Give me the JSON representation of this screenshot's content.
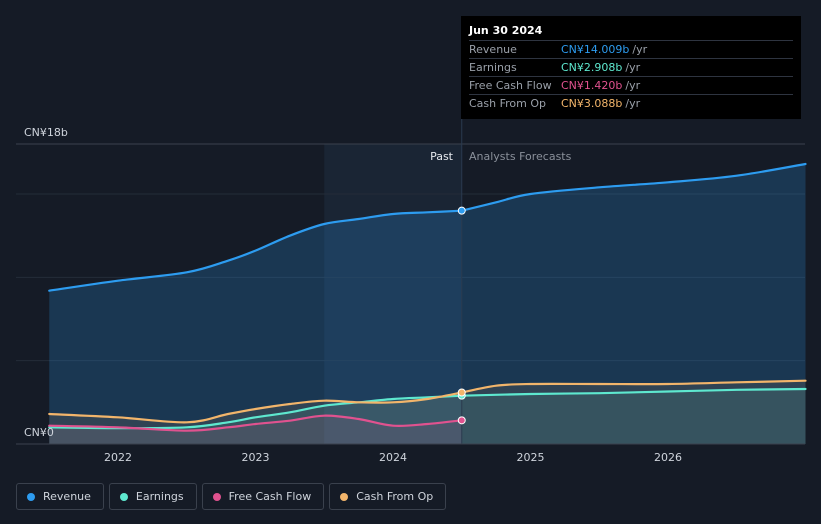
{
  "tooltip": {
    "date": "Jun 30 2024",
    "rows": [
      {
        "label": "Revenue",
        "value": "CN¥14.009b",
        "unit": "/yr",
        "color": "#2d9cf0"
      },
      {
        "label": "Earnings",
        "value": "CN¥2.908b",
        "unit": "/yr",
        "color": "#5ee8cf"
      },
      {
        "label": "Free Cash Flow",
        "value": "CN¥1.420b",
        "unit": "/yr",
        "color": "#e0528f"
      },
      {
        "label": "Cash From Op",
        "value": "CN¥3.088b",
        "unit": "/yr",
        "color": "#f2b56b"
      }
    ]
  },
  "legend": [
    {
      "label": "Revenue",
      "color": "#2d9cf0"
    },
    {
      "label": "Earnings",
      "color": "#5ee8cf"
    },
    {
      "label": "Free Cash Flow",
      "color": "#e0528f"
    },
    {
      "label": "Cash From Op",
      "color": "#f2b56b"
    }
  ],
  "chart_data": {
    "type": "line",
    "y_top_label": "CN¥18b",
    "y_bottom_label": "CN¥0",
    "ylim": [
      0,
      18
    ],
    "xlim": [
      2021.5,
      2027.0
    ],
    "x_ticks": [
      {
        "value": 2022.0,
        "label": "2022"
      },
      {
        "value": 2023.0,
        "label": "2023"
      },
      {
        "value": 2024.0,
        "label": "2024"
      },
      {
        "value": 2025.0,
        "label": "2025"
      },
      {
        "value": 2026.0,
        "label": "2026"
      }
    ],
    "past_label": "Past",
    "forecast_label": "Analysts Forecasts",
    "past_start": 2023.5,
    "divider": 2024.5,
    "series": [
      {
        "name": "Revenue",
        "color": "#2d9cf0",
        "past": [
          [
            2021.5,
            9.2
          ],
          [
            2022.0,
            9.8
          ],
          [
            2022.5,
            10.3
          ],
          [
            2022.8,
            11.0
          ],
          [
            2023.0,
            11.6
          ],
          [
            2023.25,
            12.5
          ],
          [
            2023.5,
            13.2
          ],
          [
            2023.75,
            13.5
          ],
          [
            2024.0,
            13.8
          ],
          [
            2024.25,
            13.9
          ],
          [
            2024.5,
            14.0
          ]
        ],
        "forecast": [
          [
            2024.5,
            14.0
          ],
          [
            2024.75,
            14.5
          ],
          [
            2025.0,
            15.0
          ],
          [
            2025.5,
            15.4
          ],
          [
            2026.0,
            15.7
          ],
          [
            2026.5,
            16.1
          ],
          [
            2027.0,
            16.8
          ]
        ]
      },
      {
        "name": "Earnings",
        "color": "#5ee8cf",
        "past": [
          [
            2021.5,
            1.0
          ],
          [
            2022.0,
            0.95
          ],
          [
            2022.5,
            1.0
          ],
          [
            2022.8,
            1.3
          ],
          [
            2023.0,
            1.6
          ],
          [
            2023.25,
            1.9
          ],
          [
            2023.5,
            2.3
          ],
          [
            2023.75,
            2.5
          ],
          [
            2024.0,
            2.7
          ],
          [
            2024.25,
            2.8
          ],
          [
            2024.5,
            2.9
          ]
        ],
        "forecast": [
          [
            2024.5,
            2.9
          ],
          [
            2025.0,
            3.0
          ],
          [
            2025.5,
            3.05
          ],
          [
            2026.0,
            3.15
          ],
          [
            2026.5,
            3.25
          ],
          [
            2027.0,
            3.3
          ]
        ]
      },
      {
        "name": "Free Cash Flow",
        "color": "#e0528f",
        "past": [
          [
            2021.5,
            1.1
          ],
          [
            2022.0,
            1.0
          ],
          [
            2022.5,
            0.8
          ],
          [
            2022.8,
            1.0
          ],
          [
            2023.0,
            1.2
          ],
          [
            2023.25,
            1.4
          ],
          [
            2023.5,
            1.7
          ],
          [
            2023.75,
            1.5
          ],
          [
            2024.0,
            1.1
          ],
          [
            2024.25,
            1.2
          ],
          [
            2024.5,
            1.42
          ]
        ],
        "forecast": []
      },
      {
        "name": "Cash From Op",
        "color": "#f2b56b",
        "past": [
          [
            2021.5,
            1.8
          ],
          [
            2022.0,
            1.6
          ],
          [
            2022.5,
            1.3
          ],
          [
            2022.8,
            1.8
          ],
          [
            2023.0,
            2.1
          ],
          [
            2023.25,
            2.4
          ],
          [
            2023.5,
            2.6
          ],
          [
            2023.75,
            2.5
          ],
          [
            2024.0,
            2.5
          ],
          [
            2024.25,
            2.7
          ],
          [
            2024.5,
            3.09
          ]
        ],
        "forecast": [
          [
            2024.5,
            3.09
          ],
          [
            2024.75,
            3.5
          ],
          [
            2025.0,
            3.6
          ],
          [
            2025.5,
            3.6
          ],
          [
            2026.0,
            3.6
          ],
          [
            2026.5,
            3.7
          ],
          [
            2027.0,
            3.8
          ]
        ]
      }
    ]
  }
}
